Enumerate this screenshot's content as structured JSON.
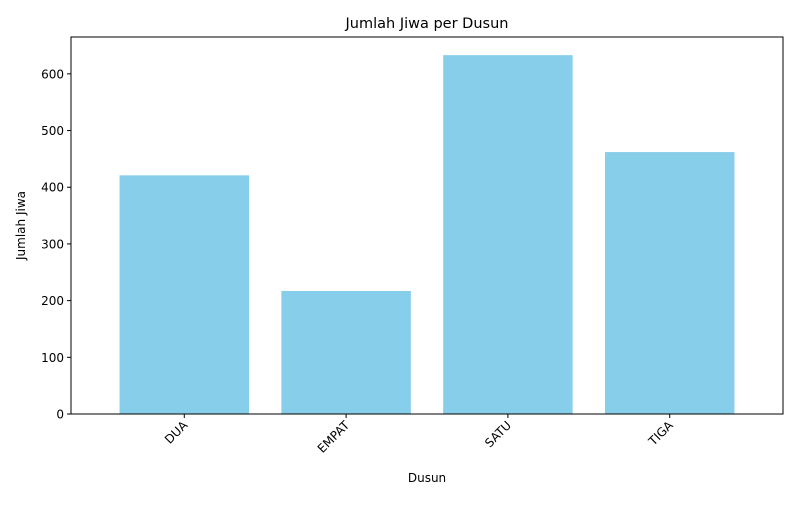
{
  "chart_data": {
    "type": "bar",
    "title": "Jumlah Jiwa per Dusun",
    "xlabel": "Dusun",
    "ylabel": "Jumlah Jiwa",
    "categories": [
      "DUA",
      "EMPAT",
      "SATU",
      "TIGA"
    ],
    "values": [
      421,
      217,
      633,
      462
    ],
    "ylim": [
      0,
      665
    ],
    "yticks": [
      0,
      100,
      200,
      300,
      400,
      500,
      600
    ],
    "bar_color": "#87CEEB",
    "grid": false,
    "legend": "none",
    "x_tick_rotation_deg": 45
  }
}
